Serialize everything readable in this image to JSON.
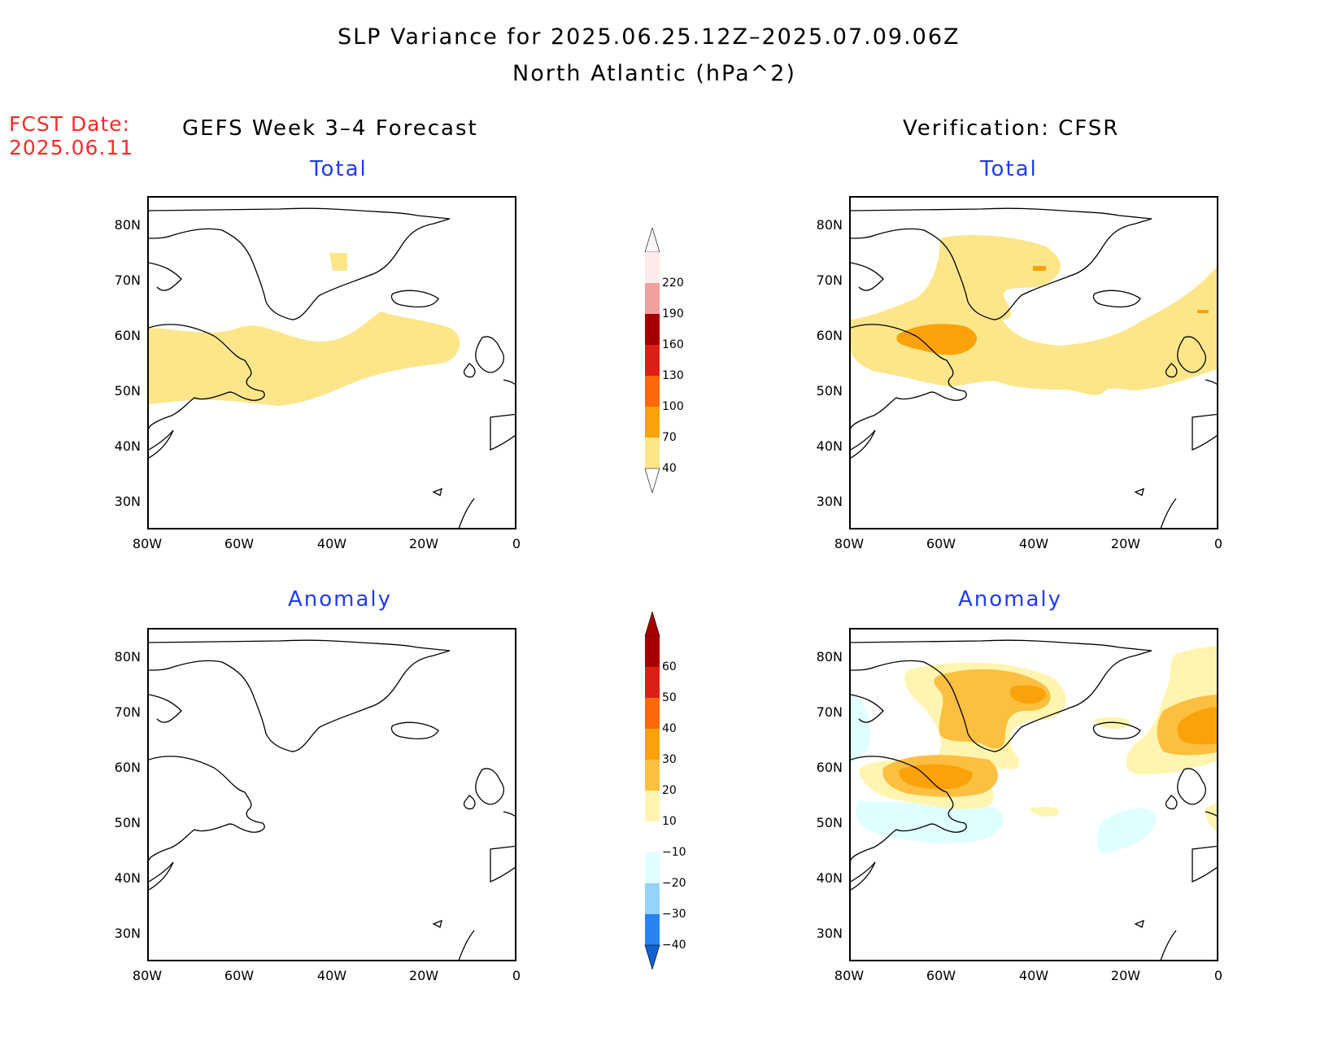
{
  "title": {
    "line1": "SLP Variance for 2025.06.25.12Z–2025.07.09.06Z",
    "line2": "North Atlantic (hPa^2)"
  },
  "fcst_date": {
    "label": "FCST Date:",
    "value": "2025.06.11"
  },
  "columns": {
    "left": "GEFS Week 3–4 Forecast",
    "right": "Verification: CFSR"
  },
  "panel_titles": {
    "total": "Total",
    "anomaly": "Anomaly"
  },
  "axes": {
    "lat_labels": [
      "80N",
      "70N",
      "60N",
      "50N",
      "40N",
      "30N"
    ],
    "lon_labels": [
      "80W",
      "60W",
      "40W",
      "20W",
      "0"
    ]
  },
  "colorbars": {
    "total": {
      "levels": [
        "220",
        "190",
        "160",
        "130",
        "100",
        "70",
        "40"
      ],
      "colors": [
        "#fdeaea",
        "#f1a0a0",
        "#a50000",
        "#dc1e14",
        "#fa6a0a",
        "#fba20a",
        "#fde68a"
      ]
    },
    "anomaly": {
      "levels": [
        "60",
        "50",
        "40",
        "30",
        "20",
        "10",
        "−10",
        "−20",
        "−30",
        "−40"
      ],
      "colors": [
        "#a50000",
        "#dc1e14",
        "#fa6a0a",
        "#fba20a",
        "#fdbf40",
        "#fff5b0",
        "#ffffff",
        "#e0ffff",
        "#96d2fa",
        "#2882f0",
        "#1060d0"
      ]
    }
  },
  "map_colors": {
    "level40": "#fde68a",
    "level70": "#fba20a",
    "anom10": "#fff5b0",
    "anom20": "#fdbf40",
    "anom30": "#fba20a",
    "anomneg10": "#e0ffff"
  }
}
